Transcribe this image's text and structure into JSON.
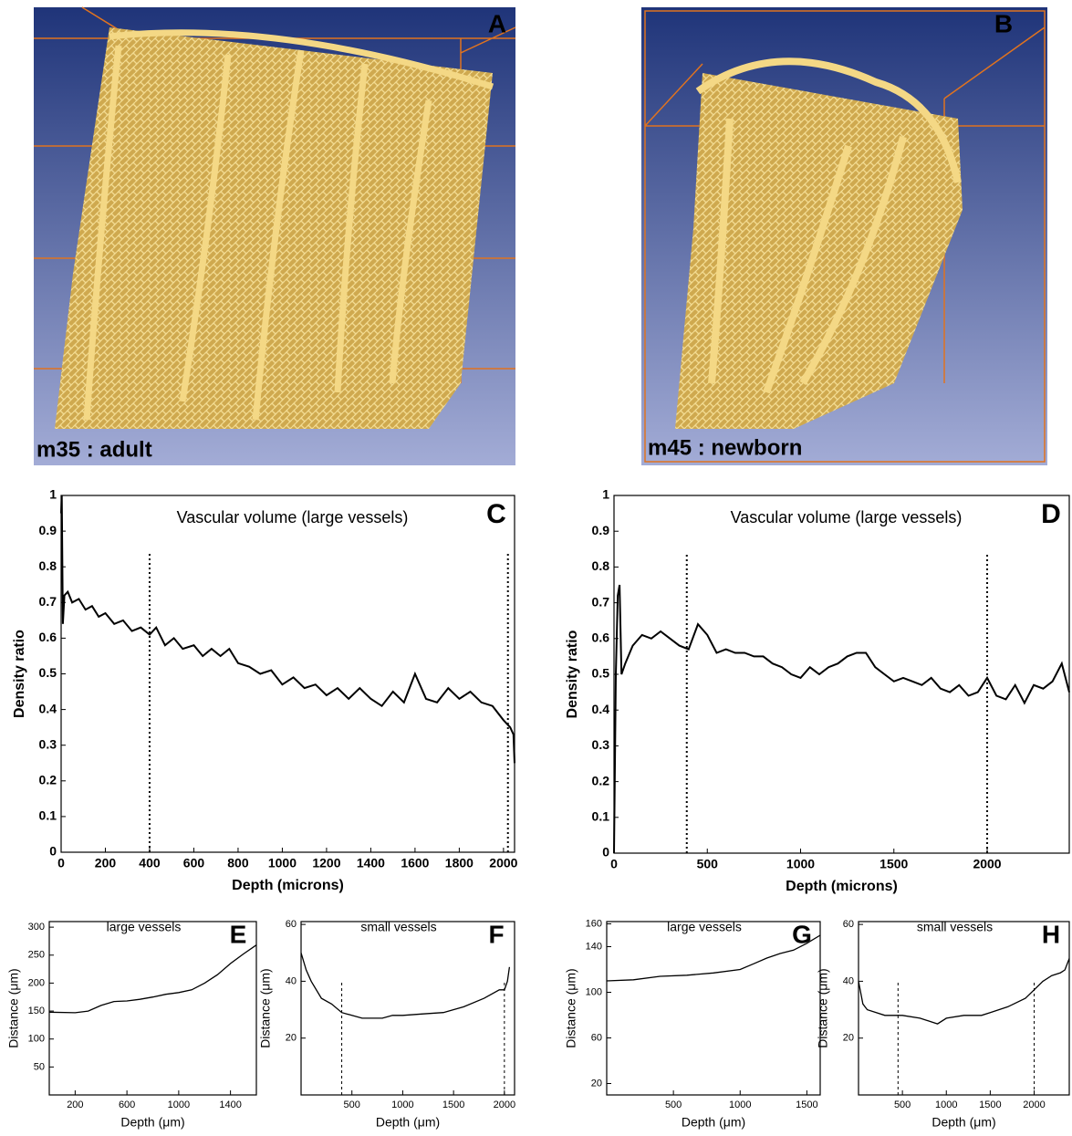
{
  "images": [
    {
      "letter": "A",
      "caption": "m35 : adult"
    },
    {
      "letter": "B",
      "caption": "m45 : newborn"
    }
  ],
  "chart_data": [
    {
      "type": "line",
      "letter": "C",
      "title": "Vascular volume (large vessels)",
      "xlabel": "Depth (microns)",
      "ylabel": "Density ratio",
      "color": "#000000",
      "xlim": [
        0,
        2050
      ],
      "ylim": [
        0,
        1
      ],
      "xticks": [
        0,
        200,
        400,
        600,
        800,
        1000,
        1200,
        1400,
        1600,
        1800,
        2000
      ],
      "yticks": [
        0,
        0.1,
        0.2,
        0.3,
        0.4,
        0.5,
        0.6,
        0.7,
        0.8,
        0.9,
        1
      ],
      "vlines": [
        400,
        2020
      ],
      "x": [
        0,
        3,
        8,
        15,
        30,
        50,
        80,
        110,
        140,
        170,
        200,
        240,
        280,
        320,
        360,
        400,
        430,
        470,
        510,
        550,
        600,
        640,
        680,
        720,
        760,
        800,
        850,
        900,
        950,
        1000,
        1050,
        1100,
        1150,
        1200,
        1250,
        1300,
        1350,
        1400,
        1450,
        1500,
        1550,
        1600,
        1650,
        1700,
        1750,
        1800,
        1850,
        1900,
        1950,
        2000,
        2030,
        2045,
        2050
      ],
      "values": [
        0.95,
        1,
        0.64,
        0.72,
        0.73,
        0.7,
        0.71,
        0.68,
        0.69,
        0.66,
        0.67,
        0.64,
        0.65,
        0.62,
        0.63,
        0.61,
        0.63,
        0.58,
        0.6,
        0.57,
        0.58,
        0.55,
        0.57,
        0.55,
        0.57,
        0.53,
        0.52,
        0.5,
        0.51,
        0.47,
        0.49,
        0.46,
        0.47,
        0.44,
        0.46,
        0.43,
        0.46,
        0.43,
        0.41,
        0.45,
        0.42,
        0.5,
        0.43,
        0.42,
        0.46,
        0.43,
        0.45,
        0.42,
        0.41,
        0.37,
        0.35,
        0.33,
        0.25
      ]
    },
    {
      "type": "line",
      "letter": "D",
      "title": "Vascular volume  (large vessels)",
      "xlabel": "Depth (microns)",
      "ylabel": "Density ratio",
      "color": "#000000",
      "xlim": [
        0,
        2440
      ],
      "ylim": [
        0,
        1
      ],
      "xticks": [
        0,
        500,
        1000,
        1500,
        2000
      ],
      "yticks": [
        0,
        0.1,
        0.2,
        0.3,
        0.4,
        0.5,
        0.6,
        0.7,
        0.8,
        0.9,
        1
      ],
      "vlines": [
        390,
        2000
      ],
      "x": [
        0,
        10,
        20,
        30,
        40,
        60,
        100,
        150,
        200,
        250,
        300,
        350,
        400,
        450,
        500,
        550,
        600,
        650,
        700,
        750,
        800,
        850,
        900,
        950,
        1000,
        1050,
        1100,
        1150,
        1200,
        1250,
        1300,
        1350,
        1400,
        1450,
        1500,
        1550,
        1600,
        1650,
        1700,
        1750,
        1800,
        1850,
        1900,
        1950,
        2000,
        2050,
        2100,
        2150,
        2200,
        2250,
        2300,
        2350,
        2400,
        2440
      ],
      "values": [
        0,
        0.5,
        0.72,
        0.75,
        0.5,
        0.53,
        0.58,
        0.61,
        0.6,
        0.62,
        0.6,
        0.58,
        0.57,
        0.64,
        0.61,
        0.56,
        0.57,
        0.56,
        0.56,
        0.55,
        0.55,
        0.53,
        0.52,
        0.5,
        0.49,
        0.52,
        0.5,
        0.52,
        0.53,
        0.55,
        0.56,
        0.56,
        0.52,
        0.5,
        0.48,
        0.49,
        0.48,
        0.47,
        0.49,
        0.46,
        0.45,
        0.47,
        0.44,
        0.45,
        0.49,
        0.44,
        0.43,
        0.47,
        0.42,
        0.47,
        0.46,
        0.48,
        0.53,
        0.45
      ]
    },
    {
      "type": "line",
      "letter": "E",
      "title": "large vessels",
      "xlabel": "Depth (μm)",
      "ylabel": "Distance (μm)",
      "color": "#000000",
      "xlim": [
        0,
        1600
      ],
      "ylim": [
        0,
        310
      ],
      "xticks": [
        200,
        600,
        1000,
        1400
      ],
      "yticks": [
        50,
        100,
        150,
        200,
        250,
        300
      ],
      "x": [
        0,
        200,
        300,
        400,
        500,
        600,
        700,
        800,
        900,
        1000,
        1100,
        1200,
        1300,
        1400,
        1500,
        1600
      ],
      "values": [
        148,
        147,
        150,
        160,
        167,
        168,
        171,
        175,
        180,
        183,
        188,
        200,
        215,
        235,
        252,
        268
      ]
    },
    {
      "type": "line",
      "letter": "F",
      "title": "small vessels",
      "xlabel": "Depth (μm)",
      "ylabel": "Distance (μm)",
      "color": "#000000",
      "xlim": [
        0,
        2100
      ],
      "ylim": [
        0,
        61
      ],
      "xticks": [
        500,
        1000,
        1500,
        2000
      ],
      "yticks": [
        20,
        40,
        60
      ],
      "vlines": [
        400,
        2000
      ],
      "x": [
        0,
        50,
        100,
        200,
        300,
        400,
        500,
        600,
        700,
        800,
        900,
        1000,
        1200,
        1400,
        1600,
        1800,
        1950,
        2000,
        2030,
        2050
      ],
      "values": [
        50,
        44,
        40,
        34,
        32,
        29,
        28,
        27,
        27,
        27,
        28,
        28,
        28.5,
        29,
        31,
        34,
        37,
        37,
        40,
        45
      ]
    },
    {
      "type": "line",
      "letter": "G",
      "title": "large vessels",
      "xlabel": "Depth (μm)",
      "ylabel": "Distance (μm)",
      "color": "#000000",
      "xlim": [
        0,
        1600
      ],
      "ylim": [
        10,
        162
      ],
      "xticks": [
        500,
        1000,
        1500
      ],
      "yticks": [
        20,
        60,
        100,
        140,
        160
      ],
      "x": [
        0,
        200,
        400,
        600,
        800,
        1000,
        1100,
        1200,
        1300,
        1400,
        1500,
        1600
      ],
      "values": [
        110,
        111,
        114,
        115,
        117,
        120,
        125,
        130,
        134,
        137,
        143,
        150
      ]
    },
    {
      "type": "line",
      "letter": "H",
      "title": "small vessels",
      "xlabel": "Depth (μm)",
      "ylabel": "Distance (μm)",
      "color": "#000000",
      "xlim": [
        0,
        2400
      ],
      "ylim": [
        0,
        61
      ],
      "xticks": [
        500,
        1000,
        1500,
        2000
      ],
      "yticks": [
        20,
        40,
        60
      ],
      "vlines": [
        450,
        2000
      ],
      "x": [
        0,
        50,
        100,
        300,
        500,
        700,
        900,
        1000,
        1200,
        1400,
        1500,
        1700,
        1900,
        2000,
        2100,
        2200,
        2300,
        2350,
        2400
      ],
      "values": [
        40,
        32,
        30,
        28,
        28,
        27,
        25,
        27,
        28,
        28,
        29,
        31,
        34,
        37,
        40,
        42,
        43,
        44,
        48
      ]
    }
  ]
}
